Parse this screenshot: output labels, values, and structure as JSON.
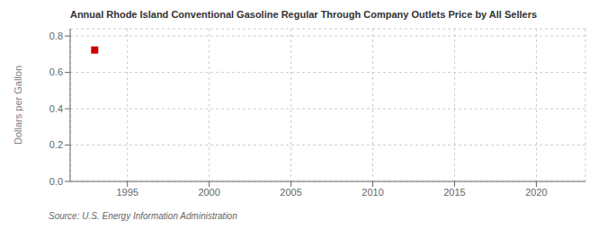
{
  "chart_data": {
    "type": "scatter",
    "title": "Annual Rhode Island Conventional Gasoline Regular Through Company Outlets Price by All Sellers",
    "ylabel": "Dollars per Gallon",
    "annotations": [
      "Source: U.S. Energy Information Administration"
    ],
    "x": [
      1993
    ],
    "values": [
      0.723
    ],
    "color": "#cc0000",
    "marker": "square",
    "xlim": [
      1991.5,
      2023
    ],
    "ylim": [
      0.0,
      0.84
    ],
    "xticks": [
      1995,
      2000,
      2005,
      2010,
      2015,
      2020
    ],
    "yticks": [
      {
        "value": 0.0,
        "label": "0.0"
      },
      0.2,
      0.4,
      0.6,
      0.8
    ],
    "grid": true
  }
}
